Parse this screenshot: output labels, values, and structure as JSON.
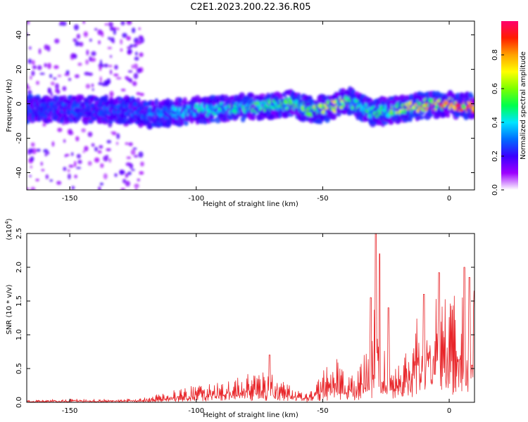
{
  "title": "C2E1.2023.200.22.36.R05",
  "colorbar": {
    "label": "Normalized spectral amplitude",
    "ticks": [
      "0.0",
      "0.2",
      "0.4",
      "0.6",
      "0.8"
    ],
    "range": [
      0,
      1
    ]
  },
  "chart_data": [
    {
      "type": "heatmap",
      "title": "",
      "xlabel": "Height of straight line (km)",
      "ylabel": "Frequency (Hz)",
      "xlim": [
        -167,
        10
      ],
      "ylim": [
        -50,
        48
      ],
      "x_ticks": [
        "-150",
        "-100",
        "-50",
        "0"
      ],
      "y_ticks": [
        "40",
        "20",
        "0",
        "-20",
        "-40"
      ],
      "ridge": {
        "x": [
          -167,
          -150,
          -125,
          -120,
          -110,
          -100,
          -90,
          -80,
          -70,
          -62,
          -58,
          -55,
          -50,
          -45,
          -40,
          -35,
          -30,
          -25,
          -20,
          -10,
          0,
          10
        ],
        "y": [
          -3,
          -3,
          -4,
          -6,
          -5,
          -4,
          -3,
          -2,
          -1,
          0,
          -2,
          -4,
          -3,
          -1,
          2,
          -2,
          -5,
          -4,
          -3,
          -1,
          0,
          -2
        ]
      },
      "ridge_amplitude": {
        "x": [
          -167,
          -150,
          -125,
          -110,
          -90,
          -70,
          -55,
          -45,
          -35,
          -25,
          -10,
          0,
          10
        ],
        "v": [
          0.25,
          0.3,
          0.3,
          0.4,
          0.5,
          0.55,
          0.6,
          0.75,
          0.5,
          0.55,
          0.85,
          0.9,
          0.95
        ]
      },
      "scatter_noise": {
        "x_range": [
          -167,
          -120
        ],
        "y_range": [
          -50,
          48
        ],
        "amplitude": 0.12
      }
    },
    {
      "type": "line",
      "title": "",
      "xlabel": "Height of straight line (km)",
      "ylabel": "SNR (10 * v/v)",
      "scale_label": "(x10",
      "scale_exp": "4",
      "scale_close": ")",
      "xlim": [
        -167,
        10
      ],
      "ylim": [
        0,
        2.5
      ],
      "x_ticks": [
        "-150",
        "-100",
        "-50",
        "0"
      ],
      "y_ticks": [
        "0.0",
        "0.5",
        "1.0",
        "1.5",
        "2.0",
        "2.5"
      ],
      "line_color": "#e8262a",
      "envelope": {
        "x": [
          -167,
          -150,
          -130,
          -120,
          -112,
          -105,
          -100,
          -95,
          -90,
          -85,
          -80,
          -75,
          -70,
          -66,
          -60,
          -56,
          -53,
          -50,
          -48,
          -45,
          -42,
          -40,
          -37,
          -35,
          -33,
          -31,
          -30,
          -29,
          -28,
          -27,
          -25,
          -22,
          -20,
          -18,
          -15,
          -12,
          -10,
          -8,
          -5,
          -2,
          0,
          3,
          5,
          7,
          9,
          10
        ],
        "y": [
          0.03,
          0.05,
          0.04,
          0.07,
          0.13,
          0.2,
          0.25,
          0.3,
          0.35,
          0.35,
          0.38,
          0.4,
          0.42,
          0.3,
          0.16,
          0.12,
          0.2,
          0.45,
          0.55,
          0.6,
          0.5,
          0.4,
          0.35,
          0.5,
          0.75,
          1.0,
          1.2,
          2.2,
          1.1,
          0.9,
          0.7,
          0.55,
          0.5,
          0.6,
          1.0,
          1.2,
          1.25,
          1.35,
          1.4,
          1.45,
          1.4,
          1.5,
          1.45,
          1.3,
          1.3,
          1.4
        ]
      },
      "spikes": [
        {
          "x": -71,
          "y": 0.7
        },
        {
          "x": -29,
          "y": 2.5
        },
        {
          "x": -27.5,
          "y": 2.2
        },
        {
          "x": -31,
          "y": 1.55
        },
        {
          "x": -24,
          "y": 1.4
        },
        {
          "x": -10,
          "y": 1.6
        },
        {
          "x": -4,
          "y": 1.92
        },
        {
          "x": 6,
          "y": 2.0
        },
        {
          "x": 8,
          "y": 1.85
        },
        {
          "x": 10,
          "y": 1.65
        },
        {
          "x": 9,
          "y": 0.55
        }
      ]
    }
  ]
}
